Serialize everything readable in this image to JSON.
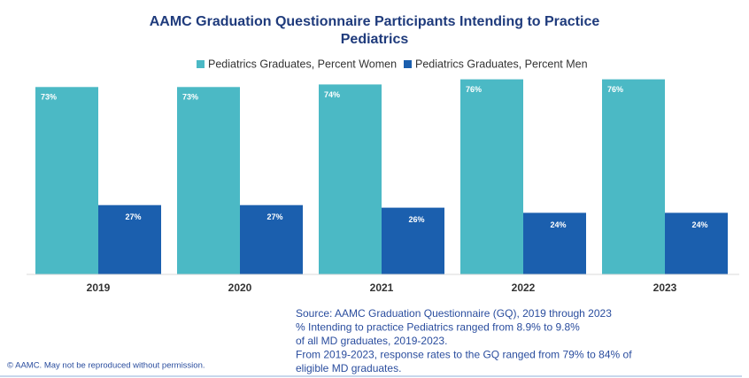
{
  "chart_data": {
    "type": "bar",
    "title_lines": [
      "AAMC Graduation Questionnaire Participants Intending to Practice",
      "Pediatrics"
    ],
    "categories": [
      "2019",
      "2020",
      "2021",
      "2022",
      "2023"
    ],
    "series": [
      {
        "name": "Pediatrics Graduates, Percent Women",
        "color": "#4bb9c5",
        "values": [
          73,
          73,
          74,
          76,
          76
        ],
        "value_labels": [
          "73%",
          "73%",
          "74%",
          "76%",
          "76%"
        ]
      },
      {
        "name": "Pediatrics Graduates, Percent Men",
        "color": "#1b5fae",
        "values": [
          27,
          27,
          26,
          24,
          24
        ],
        "value_labels": [
          "27%",
          "27%",
          "26%",
          "24%",
          "24%"
        ]
      }
    ],
    "ylim": [
      0,
      100
    ],
    "legend": "top",
    "notes": [
      "Source: AAMC Graduation Questionnaire (GQ), 2019 through 2023",
      "% Intending to practice Pediatrics ranged from 8.9% to 9.8%",
      "of all MD graduates, 2019-2023.",
      "From 2019-2023,  response rates to the GQ ranged from 79% to 84% of",
      "eligible MD graduates."
    ],
    "copyright": "© AAMC. May not be reproduced without permission."
  }
}
